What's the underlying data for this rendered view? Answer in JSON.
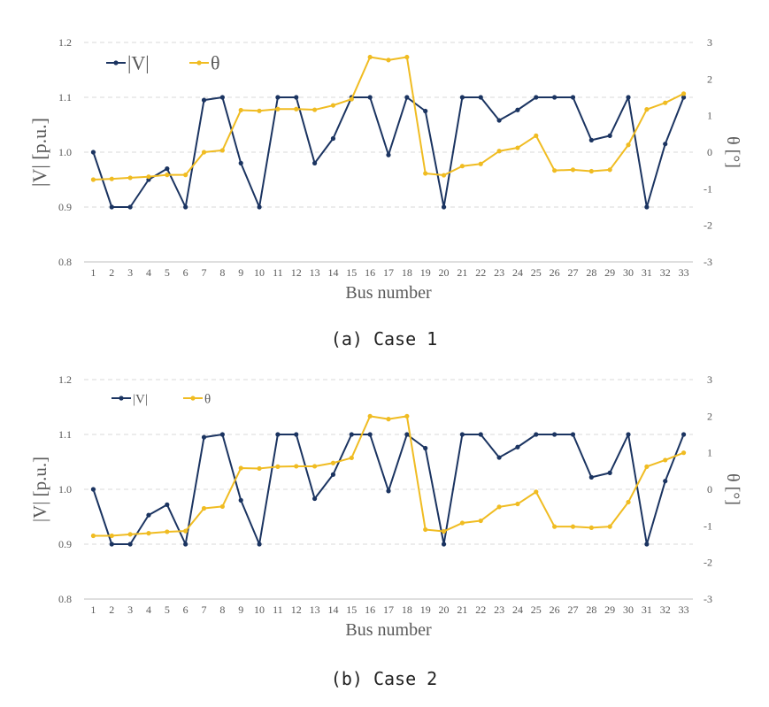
{
  "colors": {
    "voltage": "#1b3461",
    "angle": "#f0bc22",
    "grid": "#d9d9d9",
    "text": "#595959"
  },
  "charts": [
    {
      "caption": "(a) Case 1",
      "chart_data": {
        "type": "line",
        "x": [
          1,
          2,
          3,
          4,
          5,
          6,
          7,
          8,
          9,
          10,
          11,
          12,
          13,
          14,
          15,
          16,
          17,
          18,
          19,
          20,
          21,
          22,
          23,
          24,
          25,
          26,
          27,
          28,
          29,
          30,
          31,
          32,
          33
        ],
        "xlabel": "Bus number",
        "ylabel": "|V| [p.u.]",
        "y2label": "θ [°]",
        "ylim": [
          0.8,
          1.2
        ],
        "y2lim": [
          -3,
          3
        ],
        "yticks": [
          "0.8",
          "0.9",
          "1.0",
          "1.1",
          "1.2"
        ],
        "y2ticks": [
          "-3",
          "-2",
          "-1",
          "0",
          "1",
          "2",
          "3"
        ],
        "grid": true,
        "legend": "top-left",
        "series": [
          {
            "name": "|V|",
            "axis": "left",
            "color": "#1b3461",
            "values": [
              1.0,
              0.9,
              0.9,
              0.95,
              0.97,
              0.9,
              1.095,
              1.1,
              0.98,
              0.9,
              1.1,
              1.1,
              0.98,
              1.025,
              1.1,
              1.1,
              0.995,
              1.1,
              1.075,
              0.9,
              1.1,
              1.1,
              1.058,
              1.077,
              1.1,
              1.1,
              1.1,
              1.022,
              1.03,
              1.1,
              0.9,
              1.015,
              1.1
            ]
          },
          {
            "name": "θ",
            "axis": "right",
            "color": "#f0bc22",
            "values": [
              -0.75,
              -0.73,
              -0.7,
              -0.67,
              -0.62,
              -0.62,
              0.0,
              0.05,
              1.15,
              1.13,
              1.18,
              1.18,
              1.16,
              1.28,
              1.45,
              2.6,
              2.52,
              2.6,
              -0.58,
              -0.63,
              -0.38,
              -0.32,
              0.03,
              0.12,
              0.45,
              -0.5,
              -0.48,
              -0.52,
              -0.48,
              0.2,
              1.17,
              1.35,
              1.6
            ]
          }
        ]
      }
    },
    {
      "caption": "(b) Case 2",
      "chart_data": {
        "type": "line",
        "x": [
          1,
          2,
          3,
          4,
          5,
          6,
          7,
          8,
          9,
          10,
          11,
          12,
          13,
          14,
          15,
          16,
          17,
          18,
          19,
          20,
          21,
          22,
          23,
          24,
          25,
          26,
          27,
          28,
          29,
          30,
          31,
          32,
          33
        ],
        "xlabel": "Bus number",
        "ylabel": "|V| [p.u.]",
        "y2label": "θ [°]",
        "ylim": [
          0.8,
          1.2
        ],
        "y2lim": [
          -3,
          3
        ],
        "yticks": [
          "0.8",
          "0.9",
          "1.0",
          "1.1",
          "1.2"
        ],
        "y2ticks": [
          "-3",
          "-2",
          "-1",
          "0",
          "1",
          "2",
          "3"
        ],
        "grid": true,
        "legend": "top-left",
        "series": [
          {
            "name": "|V|",
            "axis": "left",
            "color": "#1b3461",
            "values": [
              1.0,
              0.9,
              0.9,
              0.953,
              0.972,
              0.9,
              1.095,
              1.1,
              0.98,
              0.9,
              1.1,
              1.1,
              0.983,
              1.027,
              1.1,
              1.1,
              0.997,
              1.1,
              1.075,
              0.9,
              1.1,
              1.1,
              1.058,
              1.077,
              1.1,
              1.1,
              1.1,
              1.022,
              1.03,
              1.1,
              0.9,
              1.015,
              1.1
            ]
          },
          {
            "name": "θ",
            "axis": "right",
            "color": "#f0bc22",
            "values": [
              -1.27,
              -1.27,
              -1.23,
              -1.2,
              -1.16,
              -1.14,
              -0.52,
              -0.47,
              0.58,
              0.57,
              0.62,
              0.63,
              0.63,
              0.72,
              0.86,
              2.0,
              1.92,
              2.0,
              -1.1,
              -1.15,
              -0.92,
              -0.86,
              -0.48,
              -0.4,
              -0.07,
              -1.02,
              -1.02,
              -1.05,
              -1.02,
              -0.35,
              0.62,
              0.8,
              1.0
            ]
          }
        ]
      }
    }
  ]
}
